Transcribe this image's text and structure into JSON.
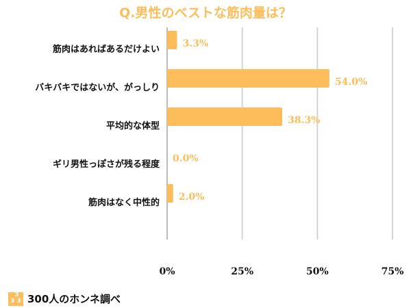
{
  "chart_data": {
    "type": "bar",
    "orientation": "horizontal",
    "title": "Q.男性のベストな筋肉量は？",
    "categories": [
      "筋肉はあればあるだけよい",
      "バキバキではないが、がっしり",
      "平均的な体型",
      "ギリ男性っぽさが残る程度",
      "筋肉はなく中性的"
    ],
    "values": [
      3.3,
      54.0,
      38.3,
      0.0,
      2.0
    ],
    "value_labels": [
      "3.3%",
      "54.0%",
      "38.3%",
      "0.0%",
      "2.0%"
    ],
    "xlim": [
      0,
      75
    ],
    "xticks": [
      0,
      25,
      50,
      75
    ],
    "xtick_labels": [
      "0%",
      "25%",
      "50%",
      "75%"
    ],
    "grid": true,
    "color": "#FDBD5B"
  },
  "source": {
    "label": "300人のホンネ調べ",
    "logo_text": "3 3 3"
  }
}
